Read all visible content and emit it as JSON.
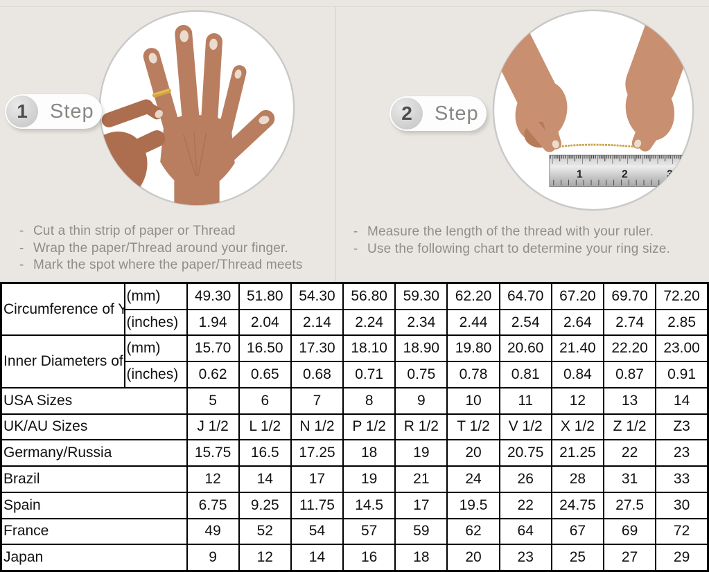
{
  "ui": {
    "bullet": "-"
  },
  "colors": {
    "top_background": "#eae7e2",
    "shaded_cell": "#d9d9d9",
    "table_border": "#000000",
    "badge_text": "#8a8784",
    "instruction_text": "#8f8d8a",
    "gold_thread": "#c9a347"
  },
  "steps": [
    {
      "badge_number": "1",
      "badge_label": "Step",
      "image": "hand-with-thread-around-ring-finger",
      "instructions": [
        "Cut a thin strip of paper or Thread",
        "Wrap the paper/Thread around your finger.",
        "Mark the spot where the paper/Thread meets"
      ]
    },
    {
      "badge_number": "2",
      "badge_label": "Step",
      "image": "hands-measuring-thread-with-ruler",
      "instructions": [
        "Measure the length of the thread with your ruler.",
        "Use the following chart to determine your ring size."
      ]
    }
  ],
  "ruler": {
    "numbers": [
      "1",
      "2",
      "3"
    ]
  },
  "size_chart": {
    "row_groups": [
      {
        "label": "Circumference of Your Finger",
        "rows": [
          {
            "unit": "(mm)",
            "shaded": true,
            "values": [
              "49.30",
              "51.80",
              "54.30",
              "56.80",
              "59.30",
              "62.20",
              "64.70",
              "67.20",
              "69.70",
              "72.20"
            ]
          },
          {
            "unit": "(inches)",
            "shaded": false,
            "values": [
              "1.94",
              "2.04",
              "2.14",
              "2.24",
              "2.34",
              "2.44",
              "2.54",
              "2.64",
              "2.74",
              "2.85"
            ]
          }
        ]
      },
      {
        "label": "Inner Diameters of Rings",
        "rows": [
          {
            "unit": "(mm)",
            "shaded": false,
            "values": [
              "15.70",
              "16.50",
              "17.30",
              "18.10",
              "18.90",
              "19.80",
              "20.60",
              "21.40",
              "22.20",
              "23.00"
            ]
          },
          {
            "unit": "(inches)",
            "shaded": false,
            "values": [
              "0.62",
              "0.65",
              "0.68",
              "0.71",
              "0.75",
              "0.78",
              "0.81",
              "0.84",
              "0.87",
              "0.91"
            ]
          }
        ]
      }
    ],
    "simple_rows": [
      {
        "label": "USA Sizes",
        "shaded": true,
        "values": [
          "5",
          "6",
          "7",
          "8",
          "9",
          "10",
          "11",
          "12",
          "13",
          "14"
        ]
      },
      {
        "label": "UK/AU Sizes",
        "shaded": false,
        "values": [
          "J 1/2",
          "L 1/2",
          "N 1/2",
          "P 1/2",
          "R 1/2",
          "T 1/2",
          "V 1/2",
          "X 1/2",
          "Z 1/2",
          "Z3"
        ]
      },
      {
        "label": "Germany/Russia",
        "shaded": false,
        "values": [
          "15.75",
          "16.5",
          "17.25",
          "18",
          "19",
          "20",
          "20.75",
          "21.25",
          "22",
          "23"
        ]
      },
      {
        "label": "Brazil",
        "shaded": false,
        "values": [
          "12",
          "14",
          "17",
          "19",
          "21",
          "24",
          "26",
          "28",
          "31",
          "33"
        ]
      },
      {
        "label": "Spain",
        "shaded": false,
        "values": [
          "6.75",
          "9.25",
          "11.75",
          "14.5",
          "17",
          "19.5",
          "22",
          "24.75",
          "27.5",
          "30"
        ]
      },
      {
        "label": "France",
        "shaded": false,
        "values": [
          "49",
          "52",
          "54",
          "57",
          "59",
          "62",
          "64",
          "67",
          "69",
          "72"
        ]
      },
      {
        "label": "Japan",
        "shaded": false,
        "values": [
          "9",
          "12",
          "14",
          "16",
          "18",
          "20",
          "23",
          "25",
          "27",
          "29"
        ]
      }
    ]
  }
}
